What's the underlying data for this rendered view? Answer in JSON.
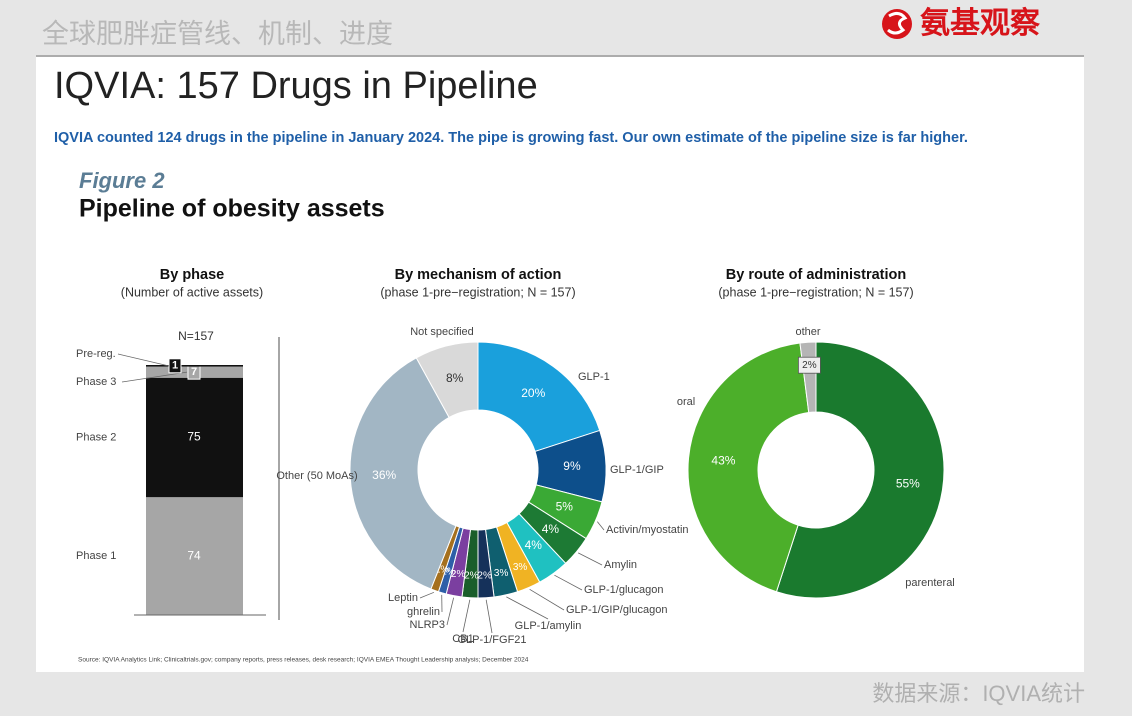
{
  "header": {
    "title": "全球肥胖症管线、机制、进度",
    "logo": "氨基观察"
  },
  "slide_title": "IQVIA: 157 Drugs in Pipeline",
  "subtitle": "IQVIA counted 124 drugs in the pipeline in January 2024. The pipe is growing fast. Our own estimate of the pipeline size is far higher.",
  "figure_label": "Figure 2",
  "figure_title": "Pipeline of obesity assets",
  "chart_data": [
    {
      "type": "stacked-bar",
      "title": "By phase",
      "subtitle": "(Number of active assets)",
      "total_label": "N=157",
      "categories": [
        "Phase 1",
        "Phase 2",
        "Phase 3",
        "Pre-reg."
      ],
      "values": [
        74,
        75,
        7,
        1
      ],
      "colors": [
        "#a6a6a6",
        "#111111",
        "#a6a6a6",
        "#111111"
      ]
    },
    {
      "type": "donut",
      "title": "By mechanism of action",
      "subtitle": "(phase 1-pre−registration; N = 157)",
      "categories": [
        "GLP-1",
        "GLP-1/GIP",
        "Activin/myostatin",
        "Amylin",
        "GLP-1/glucagon",
        "GLP-1/GIP/glucagon",
        "GLP-1/amylin",
        "GLP-1/FGF21",
        "CB1",
        "NLRP3",
        "ghrelin",
        "Leptin",
        "Other (50 MoAs)",
        "Not specified"
      ],
      "values": [
        20,
        9,
        5,
        4,
        4,
        3,
        3,
        2,
        2,
        2,
        1,
        1,
        36,
        8
      ],
      "value_labels": [
        "20%",
        "9%",
        "5%",
        "4%",
        "4%",
        "3%",
        "3%",
        "2%",
        "2%",
        "2%",
        "1%",
        "1%",
        "36%",
        "8%"
      ],
      "colors": [
        "#1aa0dc",
        "#0d4f8b",
        "#3aa935",
        "#1d7a34",
        "#1fc1c1",
        "#f0b323",
        "#0f5f6f",
        "#15315a",
        "#1a5e2a",
        "#7b3fa0",
        "#2e5fa8",
        "#a5701e",
        "#a2b6c4",
        "#d9d9d9"
      ]
    },
    {
      "type": "donut",
      "title": "By route of administration",
      "subtitle": "(phase 1-pre−registration; N = 157)",
      "categories": [
        "parenteral",
        "oral",
        "other"
      ],
      "values": [
        55,
        43,
        2
      ],
      "value_labels": [
        "55%",
        "43%",
        "2%"
      ],
      "colors": [
        "#1a7a2e",
        "#4caf2a",
        "#b5b5b5"
      ]
    }
  ],
  "source": "Source: IQVIA Analytics Link; Clinicaltrials.gov; company reports, press releases, desk research; IQVIA EMEA Thought Leadership analysis; December 2024",
  "footer": "数据来源：IQVIA统计"
}
